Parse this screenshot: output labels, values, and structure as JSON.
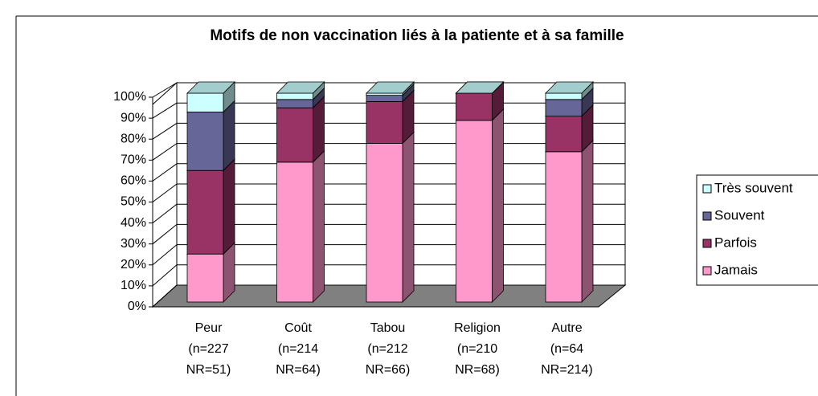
{
  "chart_data": {
    "type": "bar3d_stacked",
    "title": "Motifs de non vaccination liés à la patiente et à sa famille",
    "categories": [
      [
        "Peur",
        "(n=227",
        "NR=51)"
      ],
      [
        "Coût",
        "(n=214",
        "NR=64)"
      ],
      [
        "Tabou",
        "(n=212",
        "NR=66)"
      ],
      [
        "Religion",
        "(n=210",
        "NR=68)"
      ],
      [
        "Autre",
        "(n=64",
        "NR=214)"
      ]
    ],
    "series": [
      {
        "name": "Jamais",
        "color": "#ff99cc",
        "values": [
          23,
          67,
          76,
          87,
          72
        ]
      },
      {
        "name": "Parfois",
        "color": "#993366",
        "values": [
          40,
          26,
          20,
          13,
          17
        ]
      },
      {
        "name": "Souvent",
        "color": "#666699",
        "values": [
          28,
          4,
          3,
          0,
          8
        ]
      },
      {
        "name": "Très souvent",
        "color": "#ccffff",
        "values": [
          9,
          3,
          1,
          0,
          3
        ]
      }
    ],
    "ylim": [
      0,
      100
    ],
    "yticks": [
      {
        "value": 0,
        "label": "0%"
      },
      {
        "value": 10,
        "label": "10%"
      },
      {
        "value": 20,
        "label": "20%"
      },
      {
        "value": 30,
        "label": "30%"
      },
      {
        "value": 40,
        "label": "40%"
      },
      {
        "value": 50,
        "label": "50%"
      },
      {
        "value": 60,
        "label": "60%"
      },
      {
        "value": 70,
        "label": "70%"
      },
      {
        "value": 80,
        "label": "80%"
      },
      {
        "value": 90,
        "label": "90%"
      },
      {
        "value": 100,
        "label": "100%"
      }
    ],
    "grid": true,
    "legend": "right"
  }
}
